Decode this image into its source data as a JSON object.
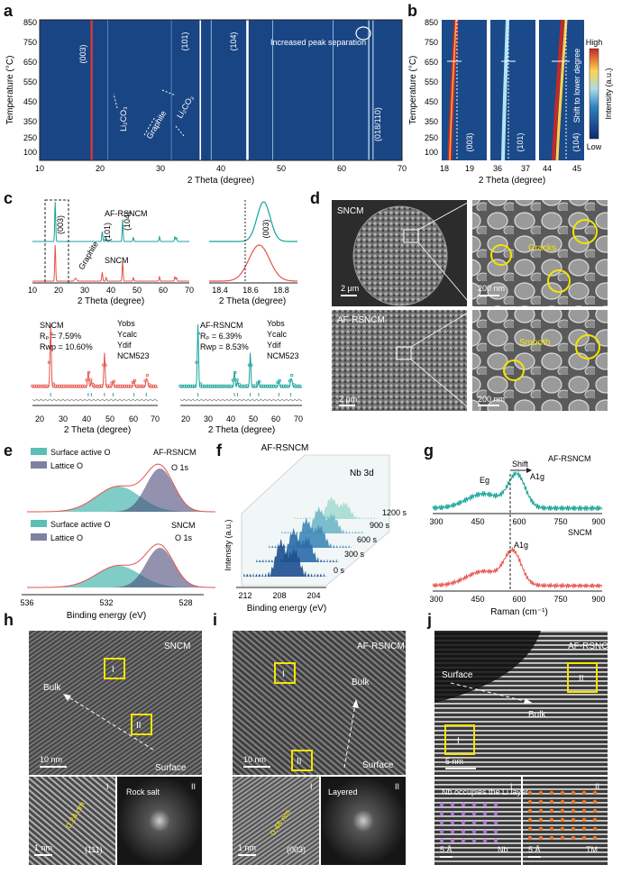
{
  "panel_letters": [
    "a",
    "b",
    "c",
    "d",
    "e",
    "f",
    "g",
    "h",
    "i",
    "j"
  ],
  "a": {
    "ylabel": "Temperature (°C)",
    "xlabel": "2 Theta (degree)",
    "yticks": [
      "850",
      "750",
      "650",
      "550",
      "450",
      "350",
      "250",
      "100"
    ],
    "xticks": [
      "10",
      "20",
      "30",
      "40",
      "50",
      "60",
      "70"
    ],
    "peaks": [
      "(003)",
      "(101)",
      "(104)",
      "(018/110)"
    ],
    "notes": [
      "Li₂CO₃",
      "Graphite",
      "Li₂CO₃",
      "Increased peak separation"
    ]
  },
  "b": {
    "ylabel": "Temperature (°C)",
    "xlabel": "2 Theta (degree)",
    "yticks": [
      "850",
      "750",
      "650",
      "550",
      "450",
      "350",
      "250",
      "100"
    ],
    "xticks": [
      "18",
      "19",
      "36",
      "37",
      "44",
      "45"
    ],
    "peaks": [
      "(003)",
      "(101)",
      "(104)"
    ],
    "shift_note": "Shift to lower degree",
    "colorbar_label": "Intensity (a.u.)",
    "colorbar_high": "High",
    "colorbar_low": "Low",
    "colors": {
      "high": "#c62828",
      "mid": "#ffd54f",
      "low": "#0d2a6b"
    }
  },
  "c": {
    "top_labels": [
      "AF-RSNCM",
      "SNCM"
    ],
    "peak_labels": [
      "(003)",
      "(101)",
      "(104)"
    ],
    "graphite": "Graphite",
    "xlabel": "2 Theta (degree)",
    "xticks": [
      "10",
      "20",
      "30",
      "40",
      "50",
      "60",
      "70"
    ],
    "zoom_xticks": [
      "18.4",
      "18.6",
      "18.8"
    ],
    "zoom_peak": "(003)",
    "refine_left": {
      "name": "SNCM",
      "rp": "Rₚ = 7.59%",
      "rwp": "Rwp = 10.60%",
      "legend": [
        "Yobs",
        "Ycalc",
        "Ydif",
        "NCM523"
      ]
    },
    "refine_right": {
      "name": "AF-RSNCM",
      "rp": "Rₚ = 6.39%",
      "rwp": "Rwp = 8.53%",
      "legend": [
        "Yobs",
        "Ycalc",
        "Ydif",
        "NCM523"
      ]
    },
    "colors": {
      "af": "#17a398",
      "sncm": "#e5534b"
    }
  },
  "d": {
    "labels": [
      "SNCM",
      "AF-RSNCM"
    ],
    "scales": [
      "2 μm",
      "200 nm",
      "2 μm",
      "200 nm"
    ],
    "notes": [
      "Cracks",
      "Smooth"
    ]
  },
  "e": {
    "top": {
      "name": "AF-RSNCM",
      "legend": [
        "Surface active O",
        "Lattice O"
      ],
      "orbital": "O 1s"
    },
    "bottom": {
      "name": "SNCM",
      "legend": [
        "Surface active O",
        "Lattice O"
      ],
      "orbital": "O 1s"
    },
    "xlabel": "Binding energy (eV)",
    "xticks": [
      "536",
      "532",
      "528"
    ]
  },
  "f": {
    "title": "AF-RSNCM",
    "orbital": "Nb 3d",
    "ylabel": "Intensity (a.u.)",
    "xlabel": "Binding energy (eV)",
    "xticks": [
      "212",
      "208",
      "204"
    ],
    "times": [
      "1200 s",
      "900 s",
      "600 s",
      "300 s",
      "0 s"
    ]
  },
  "g": {
    "top": "AF-RSNCM",
    "bottom": "SNCM",
    "shift": "Shift",
    "eg": "Eg",
    "a1g": "A1g",
    "xlabel": "Raman (cm⁻¹)",
    "xticks": [
      "300",
      "450",
      "600",
      "750",
      "900"
    ]
  },
  "h": {
    "label": "SNCM",
    "bulk": "Bulk",
    "surface": "Surface",
    "box1": "I",
    "box2": "II",
    "scale": "10 nm",
    "inset_scale": "1 nm",
    "d_spacing": "0.24 nm",
    "plane": "(111)",
    "fft_label": "Rock salt"
  },
  "i": {
    "label": "AF-RSNCM",
    "bulk": "Bulk",
    "surface": "Surface",
    "box1": "I",
    "box2": "II",
    "scale": "10 nm",
    "inset_scale": "1 nm",
    "d_spacing": "0.48 nm",
    "plane": "(003)",
    "fft_label": "Layered"
  },
  "j": {
    "label": "AF-RSNCM",
    "bulk": "Bulk",
    "surface": "Surface",
    "box1": "I",
    "box2": "II",
    "scale": "5 nm",
    "inset_scale": "5 Å",
    "nb_note": "Nb occupies the Li layer",
    "nb": "Nb",
    "tm": "TM"
  }
}
